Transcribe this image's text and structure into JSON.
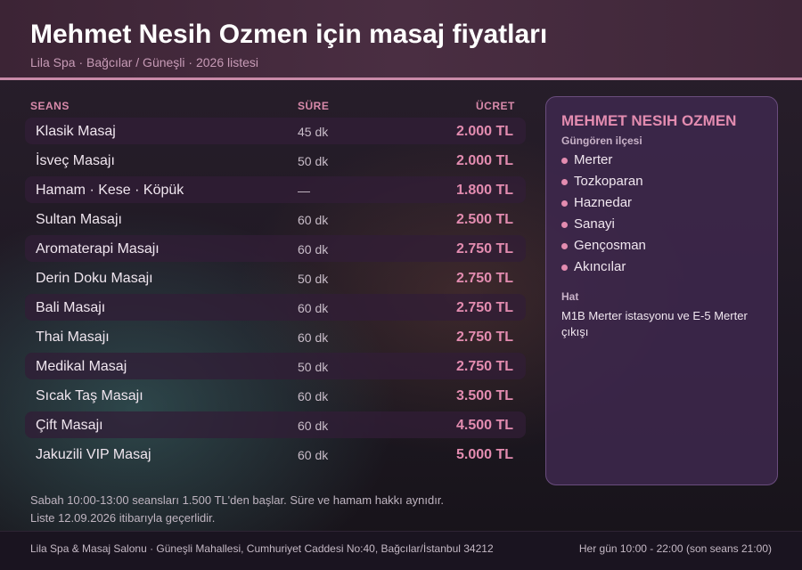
{
  "header": {
    "title": "Mehmet Nesih Ozmen için masaj fiyatları",
    "subtitle": "Lila Spa · Bağcılar / Güneşli · 2026 listesi"
  },
  "table": {
    "headers": {
      "service": "SEANS",
      "duration": "SÜRE",
      "price": "ÜCRET"
    },
    "rows": [
      {
        "name": "Klasik Masaj",
        "duration": "45 dk",
        "price": "2.000 TL"
      },
      {
        "name": "İsveç Masajı",
        "duration": "50 dk",
        "price": "2.000 TL"
      },
      {
        "name": "Hamam · Kese · Köpük",
        "duration": "—",
        "price": "1.800 TL"
      },
      {
        "name": "Sultan Masajı",
        "duration": "60 dk",
        "price": "2.500 TL"
      },
      {
        "name": "Aromaterapi Masajı",
        "duration": "60 dk",
        "price": "2.750 TL"
      },
      {
        "name": "Derin Doku Masajı",
        "duration": "50 dk",
        "price": "2.750 TL"
      },
      {
        "name": "Bali Masajı",
        "duration": "60 dk",
        "price": "2.750 TL"
      },
      {
        "name": "Thai Masajı",
        "duration": "60 dk",
        "price": "2.750 TL"
      },
      {
        "name": "Medikal Masaj",
        "duration": "50 dk",
        "price": "2.750 TL"
      },
      {
        "name": "Sıcak Taş Masajı",
        "duration": "60 dk",
        "price": "3.500 TL"
      },
      {
        "name": "Çift Masajı",
        "duration": "60 dk",
        "price": "4.500 TL"
      },
      {
        "name": "Jakuzili VIP Masaj",
        "duration": "60 dk",
        "price": "5.000 TL"
      }
    ]
  },
  "panel": {
    "title": "MEHMET NESIH OZMEN",
    "subtitle": "Güngören ilçesi",
    "areas": [
      "Merter",
      "Tozkoparan",
      "Haznedar",
      "Sanayi",
      "Gençosman",
      "Akıncılar"
    ],
    "hat_label": "Hat",
    "hat_text": "M1B Merter istasyonu ve E-5 Merter çıkışı"
  },
  "note": {
    "line1": "Sabah 10:00-13:00 seansları 1.500 TL'den başlar. Süre ve hamam hakkı aynıdır.",
    "line2": "Liste 12.09.2026 itibarıyla geçerlidir."
  },
  "footer": {
    "address": "Lila Spa & Masaj Salonu · Güneşli Mahallesi, Cumhuriyet Caddesi No:40, Bağcılar/İstanbul 34212",
    "hours": "Her gün 10:00 - 22:00 (son seans 21:00)"
  },
  "colors": {
    "accent": "#e38cb0",
    "header_bg": "#4a2e42",
    "panel_bg": "#3e284e"
  }
}
